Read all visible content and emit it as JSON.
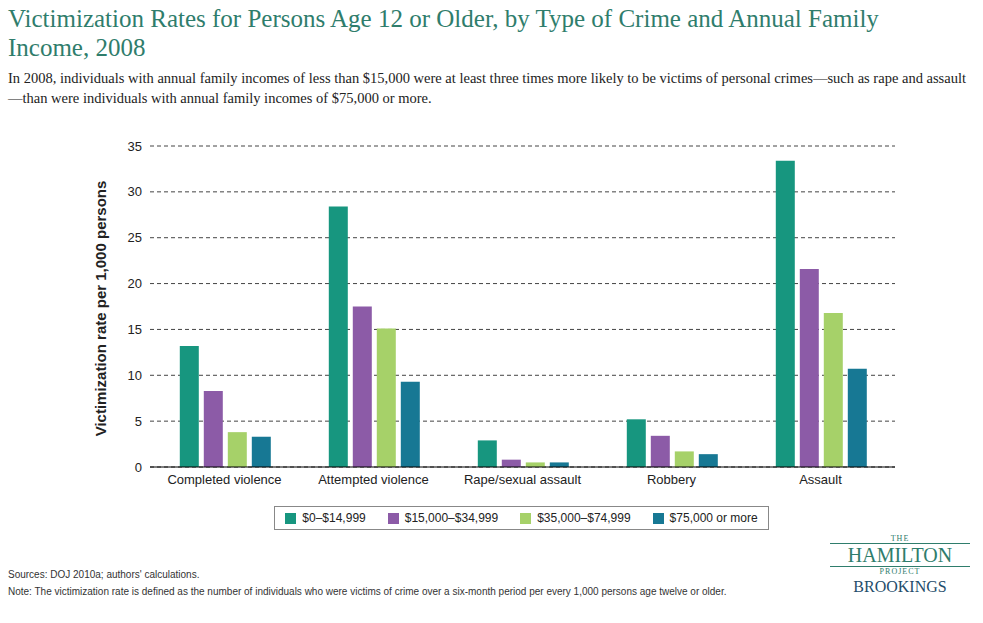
{
  "chart_data": {
    "type": "bar",
    "title": "Victimization Rates for Persons Age 12 or Older, by Type of Crime and Annual Family Income, 2008",
    "subtitle": "In 2008, individuals with annual family incomes of less than $15,000 were at least three times more likely to be victims of personal crimes—such as rape and assault—than were individuals with annual family incomes of $75,000 or more.",
    "y_label": "Victimization rate per 1,000 persons",
    "categories": [
      "Completed violence",
      "Attempted violence",
      "Rape/sexual assault",
      "Robbery",
      "Assault"
    ],
    "series": [
      {
        "name": "$0–$14,999",
        "color": "#17967f",
        "values": [
          13.2,
          28.4,
          2.9,
          5.2,
          33.4
        ]
      },
      {
        "name": "$15,000–$34,999",
        "color": "#8c5ba7",
        "values": [
          8.3,
          17.5,
          0.8,
          3.4,
          21.6
        ]
      },
      {
        "name": "$35,000–$74,999",
        "color": "#a6d169",
        "values": [
          3.8,
          15.1,
          0.5,
          1.7,
          16.8
        ]
      },
      {
        "name": "$75,000 or more",
        "color": "#177894",
        "values": [
          3.3,
          9.3,
          0.5,
          1.4,
          10.7
        ]
      }
    ],
    "ylim": [
      0,
      35
    ],
    "yticks": [
      0,
      5,
      10,
      15,
      20,
      25,
      30,
      35
    ],
    "grid": true,
    "legend": "bottom",
    "sources": "Sources: DOJ 2010a; authors' calculations.",
    "note": "Note: The victimization rate is defined as the number of individuals who were victims of crime over a six-month period per every 1,000 persons age twelve or older.",
    "logo": [
      "THE",
      "HAMILTON",
      "PROJECT",
      "BROOKINGS"
    ]
  }
}
